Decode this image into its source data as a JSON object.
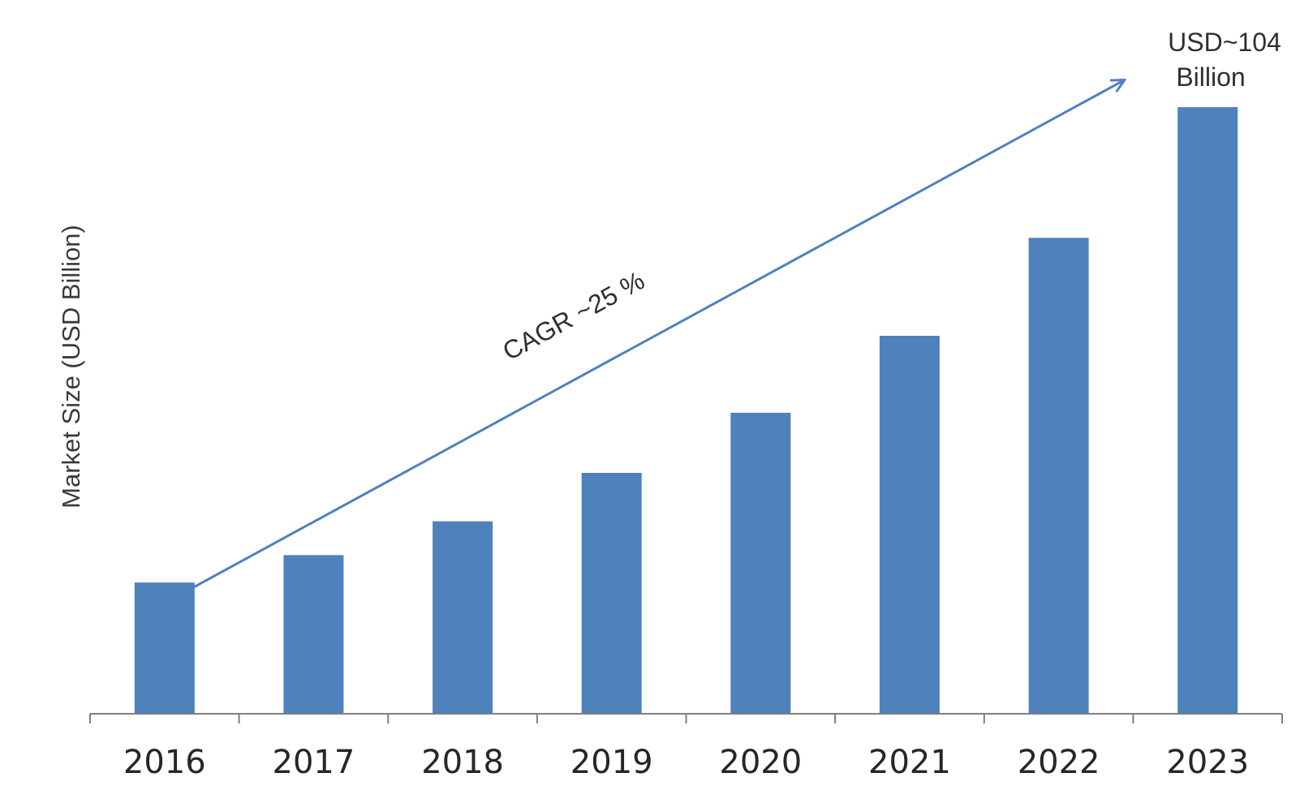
{
  "chart_data": {
    "type": "bar",
    "categories": [
      "2016",
      "2017",
      "2018",
      "2019",
      "2020",
      "2021",
      "2022",
      "2023"
    ],
    "values": [
      22.5,
      27.2,
      33,
      41.3,
      51.6,
      64.8,
      81.6,
      104
    ],
    "ylabel": "Market Size (USD Billion)",
    "xlabel": "",
    "ylim": [
      0,
      120
    ],
    "grid": false,
    "legend": "none",
    "colors": {
      "bar": "#4f81bd",
      "arrow": "#4f81bd",
      "axis": "#7f7f7f"
    },
    "annotations": {
      "cagr": "CAGR ~25 %",
      "callout_line1": "USD~104",
      "callout_line2": "Billion"
    }
  }
}
